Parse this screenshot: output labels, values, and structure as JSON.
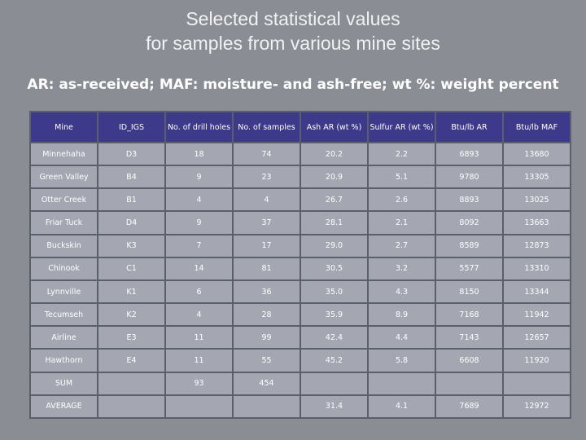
{
  "title_line1": "Selected statistical values",
  "title_line2": "for samples from various mine sites",
  "subtitle": "AR: as-received; MAF: moisture- and ash-free; wt %: weight percent",
  "headers": [
    "Mine",
    "ID_IGS",
    "No. of drill holes",
    "No. of samples",
    "Ash AR (wt %)",
    "Sulfur AR (wt %)",
    "Btu/lb AR",
    "Btu/lb MAF"
  ],
  "rows": [
    [
      "Minnehaha",
      "D3",
      "18",
      "74",
      "20.2",
      "2.2",
      "6893",
      "13680"
    ],
    [
      "Green Valley",
      "B4",
      "9",
      "23",
      "20.9",
      "5.1",
      "9780",
      "13305"
    ],
    [
      "Otter Creek",
      "B1",
      "4",
      "4",
      "26.7",
      "2.6",
      "8893",
      "13025"
    ],
    [
      "Friar Tuck",
      "D4",
      "9",
      "37",
      "28.1",
      "2.1",
      "8092",
      "13663"
    ],
    [
      "Buckskin",
      "K3",
      "7",
      "17",
      "29.0",
      "2.7",
      "8589",
      "12873"
    ],
    [
      "Chinook",
      "C1",
      "14",
      "81",
      "30.5",
      "3.2",
      "5577",
      "13310"
    ],
    [
      "Lynnville",
      "K1",
      "6",
      "36",
      "35.0",
      "4.3",
      "8150",
      "13344"
    ],
    [
      "Tecumseh",
      "K2",
      "4",
      "28",
      "35.9",
      "8.9",
      "7168",
      "11942"
    ],
    [
      "Airline",
      "E3",
      "11",
      "99",
      "42.4",
      "4.4",
      "7143",
      "12657"
    ],
    [
      "Hawthorn",
      "E4",
      "11",
      "55",
      "45.2",
      "5.8",
      "6608",
      "11920"
    ],
    [
      "SUM",
      "",
      "93",
      "454",
      "",
      "",
      "",
      ""
    ],
    [
      "AVERAGE",
      "",
      "",
      "",
      "31.4",
      "4.1",
      "7689",
      "12972"
    ]
  ]
}
